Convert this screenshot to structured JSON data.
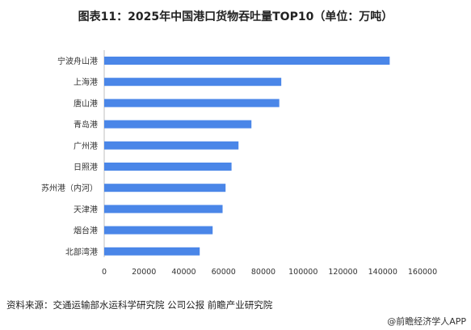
{
  "chart_data": {
    "type": "bar",
    "orientation": "horizontal",
    "title": "图表11：2025年中国港口货物吞吐量TOP10（单位：万吨）",
    "categories": [
      "宁波舟山港",
      "上海港",
      "唐山港",
      "青岛港",
      "广州港",
      "日照港",
      "苏州港（内河）",
      "天津港",
      "烟台港",
      "北部湾港"
    ],
    "values": [
      143500,
      89000,
      88000,
      74000,
      67500,
      64000,
      61000,
      59500,
      54500,
      48000
    ],
    "xlim": [
      0,
      160000
    ],
    "xticks": [
      "0",
      "20000",
      "40000",
      "60000",
      "80000",
      "100000",
      "120000",
      "140000",
      "160000"
    ],
    "bar_color": "#4a86e8",
    "grid": false,
    "legend": "none"
  },
  "footer": {
    "source": "资料来源：交通运输部水运科学研究院 公司公报 前瞻产业研究院",
    "brand": "@前瞻经济学人APP"
  }
}
